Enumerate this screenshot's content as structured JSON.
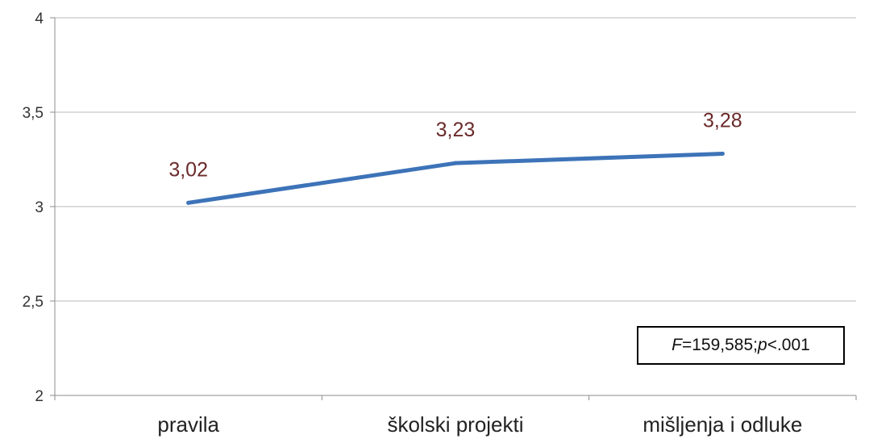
{
  "chart_data": {
    "type": "line",
    "categories": [
      "pravila",
      "školski projekti",
      "mišljenja i odluke"
    ],
    "series": [
      {
        "values": [
          3.02,
          3.23,
          3.28
        ],
        "data_labels": [
          "3,02",
          "3,23",
          "3,28"
        ]
      }
    ],
    "ylim": [
      2,
      4
    ],
    "yticks": [
      2,
      2.5,
      3,
      3.5,
      4
    ],
    "ytick_labels": [
      "2",
      "2,5",
      "3",
      "3,5",
      "4"
    ],
    "grid": true,
    "line_color": "#3d73b8",
    "annotation": {
      "f_symbol": "F",
      "f_value": "=159,585; ",
      "p_symbol": "p",
      "p_value": "<.001"
    }
  }
}
